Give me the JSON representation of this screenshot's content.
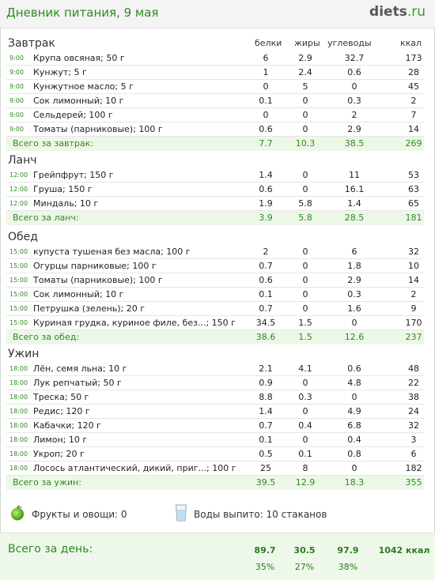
{
  "header": {
    "title": "Дневник питания, 9 мая",
    "logo_main": "diets",
    "logo_tld": ".ru"
  },
  "columns": {
    "protein": "белки",
    "fat": "жиры",
    "carbs": "углеводы",
    "kcal": "ккал"
  },
  "sections": [
    {
      "title": "Завтрак",
      "items": [
        {
          "time": "9:00",
          "name": "Крупа овсяная; 50 г",
          "p": "6",
          "f": "2.9",
          "c": "32.7",
          "k": "173"
        },
        {
          "time": "9:00",
          "name": "Кунжут; 5 г",
          "p": "1",
          "f": "2.4",
          "c": "0.6",
          "k": "28"
        },
        {
          "time": "9:00",
          "name": "Кунжутное масло; 5 г",
          "p": "0",
          "f": "5",
          "c": "0",
          "k": "45"
        },
        {
          "time": "9:00",
          "name": "Сок лимонный; 10 г",
          "p": "0.1",
          "f": "0",
          "c": "0.3",
          "k": "2"
        },
        {
          "time": "9:00",
          "name": "Сельдерей; 100 г",
          "p": "0",
          "f": "0",
          "c": "2",
          "k": "7"
        },
        {
          "time": "9:00",
          "name": "Томаты (парниковые); 100 г",
          "p": "0.6",
          "f": "0",
          "c": "2.9",
          "k": "14"
        }
      ],
      "total": {
        "label": "Всего за завтрак:",
        "p": "7.7",
        "f": "10.3",
        "c": "38.5",
        "k": "269"
      }
    },
    {
      "title": "Ланч",
      "items": [
        {
          "time": "12:00",
          "name": "Грейпфрут; 150 г",
          "p": "1.4",
          "f": "0",
          "c": "11",
          "k": "53"
        },
        {
          "time": "12:00",
          "name": "Груша; 150 г",
          "p": "0.6",
          "f": "0",
          "c": "16.1",
          "k": "63"
        },
        {
          "time": "12:00",
          "name": "Миндаль; 10 г",
          "p": "1.9",
          "f": "5.8",
          "c": "1.4",
          "k": "65"
        }
      ],
      "total": {
        "label": "Всего за ланч:",
        "p": "3.9",
        "f": "5.8",
        "c": "28.5",
        "k": "181"
      }
    },
    {
      "title": "Обед",
      "items": [
        {
          "time": "15:00",
          "name": "купуста тушеная без масла; 100 г",
          "p": "2",
          "f": "0",
          "c": "6",
          "k": "32"
        },
        {
          "time": "15:00",
          "name": "Огурцы парниковые; 100 г",
          "p": "0.7",
          "f": "0",
          "c": "1.8",
          "k": "10"
        },
        {
          "time": "15:00",
          "name": "Томаты (парниковые); 100 г",
          "p": "0.6",
          "f": "0",
          "c": "2.9",
          "k": "14"
        },
        {
          "time": "15:00",
          "name": "Сок лимонный; 10 г",
          "p": "0.1",
          "f": "0",
          "c": "0.3",
          "k": "2"
        },
        {
          "time": "15:00",
          "name": "Петрушка (зелень); 20 г",
          "p": "0.7",
          "f": "0",
          "c": "1.6",
          "k": "9"
        },
        {
          "time": "15:00",
          "name": "Куриная грудка, куриное филе, без...; 150 г",
          "p": "34.5",
          "f": "1.5",
          "c": "0",
          "k": "170"
        }
      ],
      "total": {
        "label": "Всего за обед:",
        "p": "38.6",
        "f": "1.5",
        "c": "12.6",
        "k": "237"
      }
    },
    {
      "title": "Ужин",
      "items": [
        {
          "time": "18:00",
          "name": "Лён, семя льна; 10 г",
          "p": "2.1",
          "f": "4.1",
          "c": "0.6",
          "k": "48"
        },
        {
          "time": "18:00",
          "name": "Лук репчатый; 50 г",
          "p": "0.9",
          "f": "0",
          "c": "4.8",
          "k": "22"
        },
        {
          "time": "18:00",
          "name": "Треска; 50 г",
          "p": "8.8",
          "f": "0.3",
          "c": "0",
          "k": "38"
        },
        {
          "time": "18:00",
          "name": "Редис; 120 г",
          "p": "1.4",
          "f": "0",
          "c": "4.9",
          "k": "24"
        },
        {
          "time": "18:00",
          "name": "Кабачки; 120 г",
          "p": "0.7",
          "f": "0.4",
          "c": "6.8",
          "k": "32"
        },
        {
          "time": "18:00",
          "name": "Лимон; 10 г",
          "p": "0.1",
          "f": "0",
          "c": "0.4",
          "k": "3"
        },
        {
          "time": "18:00",
          "name": "Укроп; 20 г",
          "p": "0.5",
          "f": "0.1",
          "c": "0.8",
          "k": "6"
        },
        {
          "time": "18:00",
          "name": "Лосось атлантический, дикий, приг...; 100 г",
          "p": "25",
          "f": "8",
          "c": "0",
          "k": "182"
        }
      ],
      "total": {
        "label": "Всего за ужин:",
        "p": "39.5",
        "f": "12.9",
        "c": "18.3",
        "k": "355"
      }
    }
  ],
  "extras": {
    "fruits_icon": "apple-icon",
    "fruits": "Фрукты и овощи: 0",
    "water_icon": "glass-icon",
    "water": "Воды выпито: 10 стаканов"
  },
  "day_total": {
    "label": "Всего за день:",
    "p": "89.7",
    "f": "30.5",
    "c": "97.9",
    "k": "1042 ккал",
    "p_pct": "35%",
    "f_pct": "27%",
    "c_pct": "38%"
  },
  "colors": {
    "accent": "#2d8a1f",
    "total_bg": "#edf7e8"
  }
}
